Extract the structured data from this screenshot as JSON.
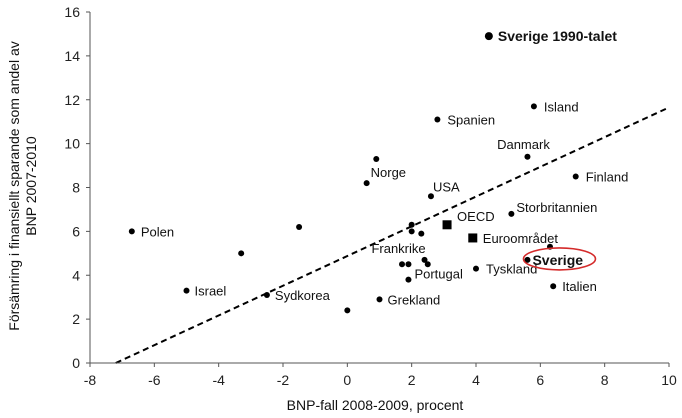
{
  "chart_data": {
    "type": "scatter",
    "xlabel": "BNP-fall 2008-2009, procent",
    "ylabel_lines": [
      "Försämring i finansiellt sparande som andel av",
      "BNP 2007-2010"
    ],
    "xlim": [
      -8,
      10
    ],
    "ylim": [
      0,
      16
    ],
    "xticks": [
      -8,
      -6,
      -4,
      -2,
      0,
      2,
      4,
      6,
      8,
      10
    ],
    "yticks": [
      0,
      2,
      4,
      6,
      8,
      10,
      12,
      14,
      16
    ],
    "grid": false,
    "trendline": {
      "style": "dashed",
      "from": [
        -7.2,
        0
      ],
      "to": [
        10,
        11.65
      ]
    },
    "points": [
      {
        "label": "Sverige 1990-talet",
        "x": 4.4,
        "y": 14.9,
        "marker": "circle",
        "emphasis": "bold"
      },
      {
        "label": "Island",
        "x": 5.8,
        "y": 11.7,
        "marker": "circle"
      },
      {
        "label": "Spanien",
        "x": 2.8,
        "y": 11.1,
        "marker": "circle"
      },
      {
        "label": "Danmark",
        "x": 5.6,
        "y": 9.4,
        "marker": "circle"
      },
      {
        "label": "Finland",
        "x": 7.1,
        "y": 8.5,
        "marker": "circle"
      },
      {
        "label": "",
        "x": 0.9,
        "y": 9.3,
        "marker": "circle"
      },
      {
        "label": "Norge",
        "x": 0.6,
        "y": 8.2,
        "marker": "circle"
      },
      {
        "label": "USA",
        "x": 2.6,
        "y": 7.6,
        "marker": "circle"
      },
      {
        "label": "Storbritannien",
        "x": 5.1,
        "y": 6.8,
        "marker": "circle"
      },
      {
        "label": "OECD",
        "x": 3.1,
        "y": 6.3,
        "marker": "square"
      },
      {
        "label": "Euroområdet",
        "x": 3.9,
        "y": 5.7,
        "marker": "square"
      },
      {
        "label": "Polen",
        "x": -6.7,
        "y": 6.0,
        "marker": "circle"
      },
      {
        "label": "",
        "x": -1.5,
        "y": 6.2,
        "marker": "circle"
      },
      {
        "label": "",
        "x": -3.3,
        "y": 5.0,
        "marker": "circle"
      },
      {
        "label": "",
        "x": 2.0,
        "y": 6.3,
        "marker": "circle"
      },
      {
        "label": "",
        "x": 2.0,
        "y": 6.0,
        "marker": "circle"
      },
      {
        "label": "",
        "x": 2.3,
        "y": 5.9,
        "marker": "circle"
      },
      {
        "label": "Frankrike",
        "x": 2.4,
        "y": 4.7,
        "marker": "circle"
      },
      {
        "label": "",
        "x": 2.5,
        "y": 4.5,
        "marker": "circle"
      },
      {
        "label": "",
        "x": 1.7,
        "y": 4.5,
        "marker": "circle"
      },
      {
        "label": "",
        "x": 1.9,
        "y": 4.5,
        "marker": "circle"
      },
      {
        "label": "Portugal",
        "x": 1.9,
        "y": 3.8,
        "marker": "circle"
      },
      {
        "label": "Tyskland",
        "x": 4.0,
        "y": 4.3,
        "marker": "circle"
      },
      {
        "label": "Sverige",
        "x": 5.6,
        "y": 4.7,
        "marker": "circle",
        "emphasis": "bold-circled"
      },
      {
        "label": "",
        "x": 6.3,
        "y": 5.3,
        "marker": "circle"
      },
      {
        "label": "Italien",
        "x": 6.4,
        "y": 3.5,
        "marker": "circle"
      },
      {
        "label": "Israel",
        "x": -5.0,
        "y": 3.3,
        "marker": "circle"
      },
      {
        "label": "Sydkorea",
        "x": -2.5,
        "y": 3.1,
        "marker": "circle"
      },
      {
        "label": "Grekland",
        "x": 1.0,
        "y": 2.9,
        "marker": "circle"
      },
      {
        "label": "",
        "x": 0.0,
        "y": 2.4,
        "marker": "circle"
      }
    ],
    "highlight_color": "#d42a2a"
  }
}
